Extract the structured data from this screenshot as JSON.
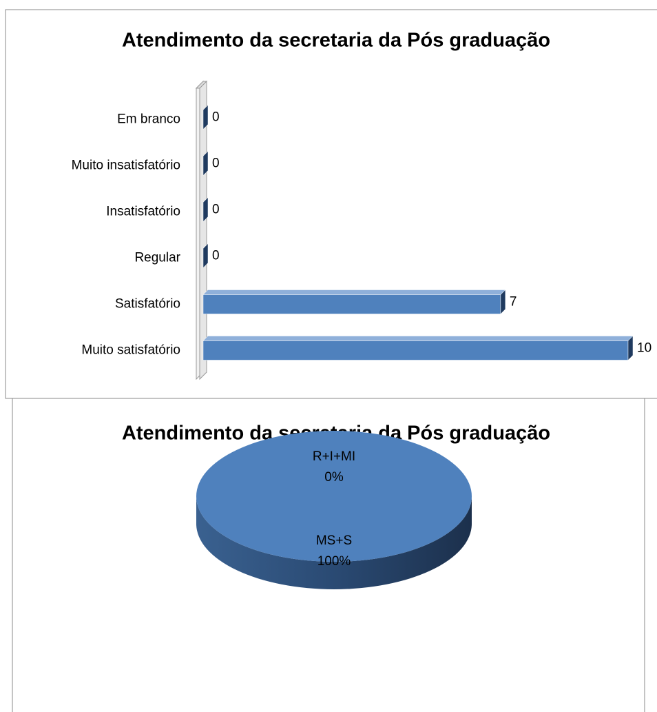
{
  "chart_data": [
    {
      "type": "bar",
      "orientation": "horizontal",
      "title": "Atendimento da secretaria da Pós graduação",
      "categories": [
        "Em branco",
        "Muito insatisfatório",
        "Insatisfatório",
        "Regular",
        "Satisfatório",
        "Muito satisfatório"
      ],
      "values": [
        0,
        0,
        0,
        0,
        7,
        10
      ],
      "color": "#4f81bd"
    },
    {
      "type": "pie",
      "title": "Atendimento da secretaria da Pós graduação",
      "categories": [
        "MS+S",
        "R+I+MI"
      ],
      "values": [
        100,
        0
      ],
      "value_labels": [
        "100%",
        "0%"
      ],
      "colors": [
        "#4f81bd",
        "#c0504d"
      ]
    }
  ]
}
